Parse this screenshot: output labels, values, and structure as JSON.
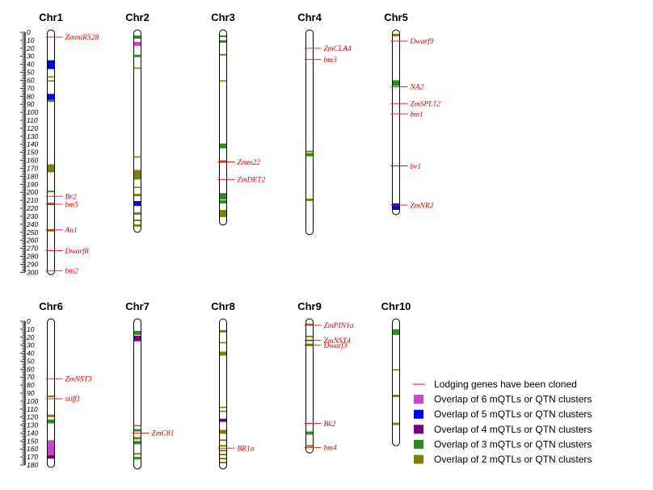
{
  "colors": {
    "gene_line": "#ff0000",
    "gene_text": "#e00000",
    "overlap6": "#cc44cc",
    "overlap5": "#0000ee",
    "overlap4": "#7a007a",
    "overlap3": "#2e8b1e",
    "overlap2": "#7f7f00"
  },
  "axis_rows": [
    {
      "ticks": [
        0,
        10,
        20,
        30,
        40,
        50,
        60,
        70,
        80,
        90,
        100,
        110,
        120,
        130,
        140,
        150,
        160,
        170,
        180,
        190,
        200,
        210,
        220,
        230,
        240,
        250,
        260,
        270,
        280,
        290,
        300
      ]
    },
    {
      "ticks": [
        0,
        10,
        20,
        30,
        40,
        50,
        60,
        70,
        80,
        90,
        100,
        110,
        120,
        130,
        140,
        150,
        160,
        170,
        180
      ]
    }
  ],
  "chromosomes": [
    {
      "name": "Chr1",
      "row": 0,
      "length": 300,
      "blocks": [
        {
          "s": 35,
          "e": 46,
          "c": "overlap5"
        },
        {
          "s": 55,
          "e": 56,
          "c": "overlap2"
        },
        {
          "s": 60,
          "e": 61,
          "c": "overlap2"
        },
        {
          "s": 77,
          "e": 86,
          "c": "overlap5"
        },
        {
          "s": 84,
          "e": 87,
          "c": "overlap3"
        },
        {
          "s": 165,
          "e": 175,
          "c": "overlap2"
        },
        {
          "s": 198,
          "e": 200,
          "c": "overlap3"
        },
        {
          "s": 213,
          "e": 216,
          "c": "overlap2"
        },
        {
          "s": 246,
          "e": 249,
          "c": "overlap2"
        }
      ],
      "genes": [
        {
          "pos": 6,
          "label": "ZmmiR528"
        },
        {
          "pos": 205,
          "label": "Br2"
        },
        {
          "pos": 215,
          "label": "bm5"
        },
        {
          "pos": 247,
          "label": "An1"
        },
        {
          "pos": 273,
          "label": "Dwarf8"
        },
        {
          "pos": 298,
          "label": "bm2"
        }
      ]
    },
    {
      "name": "Chr2",
      "row": 0,
      "length": 247,
      "blocks": [
        {
          "s": 4,
          "e": 8,
          "c": "overlap3"
        },
        {
          "s": 12,
          "e": 17,
          "c": "overlap6"
        },
        {
          "s": 28,
          "e": 31,
          "c": "overlap3"
        },
        {
          "s": 44,
          "e": 45,
          "c": "overlap2"
        },
        {
          "s": 155,
          "e": 156,
          "c": "overlap2"
        },
        {
          "s": 172,
          "e": 184,
          "c": "overlap2"
        },
        {
          "s": 193,
          "e": 194,
          "c": "overlap2"
        },
        {
          "s": 202,
          "e": 205,
          "c": "overlap2"
        },
        {
          "s": 211,
          "e": 217,
          "c": "overlap5"
        },
        {
          "s": 225,
          "e": 228,
          "c": "overlap2"
        },
        {
          "s": 234,
          "e": 236,
          "c": "overlap2"
        },
        {
          "s": 240,
          "e": 243,
          "c": "overlap2"
        }
      ],
      "genes": []
    },
    {
      "name": "Chr3",
      "row": 0,
      "length": 238,
      "blocks": [
        {
          "s": 4,
          "e": 6,
          "c": "overlap3"
        },
        {
          "s": 10,
          "e": 13,
          "c": "overlap3"
        },
        {
          "s": 27,
          "e": 29,
          "c": "overlap2"
        },
        {
          "s": 60,
          "e": 61,
          "c": "overlap2"
        },
        {
          "s": 139,
          "e": 145,
          "c": "overlap3"
        },
        {
          "s": 160,
          "e": 163,
          "c": "overlap2"
        },
        {
          "s": 201,
          "e": 209,
          "c": "overlap3"
        },
        {
          "s": 210,
          "e": 214,
          "c": "overlap3"
        },
        {
          "s": 222,
          "e": 231,
          "c": "overlap2"
        }
      ],
      "genes": [
        {
          "pos": 162,
          "label": "Zmm22"
        },
        {
          "pos": 184,
          "label": "ZmDET2"
        }
      ]
    },
    {
      "name": "Chr4",
      "row": 0,
      "length": 250,
      "blocks": [
        {
          "s": 148,
          "e": 150,
          "c": "overlap2"
        },
        {
          "s": 151,
          "e": 155,
          "c": "overlap3"
        },
        {
          "s": 208,
          "e": 211,
          "c": "overlap2"
        }
      ],
      "genes": [
        {
          "pos": 20,
          "label": "ZmCLA4"
        },
        {
          "pos": 34,
          "label": "bm3"
        }
      ]
    },
    {
      "name": "Chr5",
      "row": 0,
      "length": 225,
      "blocks": [
        {
          "s": 2,
          "e": 5,
          "c": "overlap2"
        },
        {
          "s": 60,
          "e": 67,
          "c": "overlap3"
        },
        {
          "s": 214,
          "e": 222,
          "c": "overlap5"
        }
      ],
      "genes": [
        {
          "pos": 11,
          "label": "Dwarf9"
        },
        {
          "pos": 68,
          "label": "NA2"
        },
        {
          "pos": 89,
          "label": "ZmSPL12"
        },
        {
          "pos": 102,
          "label": "bm1"
        },
        {
          "pos": 167,
          "label": "bv1"
        },
        {
          "pos": 216,
          "label": "ZmNR2"
        }
      ]
    },
    {
      "name": "Chr6",
      "row": 1,
      "length": 180,
      "blocks": [
        {
          "s": 93,
          "e": 95,
          "c": "overlap2"
        },
        {
          "s": 117,
          "e": 120,
          "c": "overlap2"
        },
        {
          "s": 123,
          "e": 128,
          "c": "overlap3"
        },
        {
          "s": 149,
          "e": 170,
          "c": "overlap6"
        },
        {
          "s": 168,
          "e": 172,
          "c": "overlap4"
        }
      ],
      "genes": [
        {
          "pos": 72,
          "label": "ZmNST3"
        },
        {
          "pos": 97,
          "label": "stiff1"
        }
      ]
    },
    {
      "name": "Chr7",
      "row": 1,
      "length": 182,
      "blocks": [
        {
          "s": 12,
          "e": 17,
          "c": "overlap3"
        },
        {
          "s": 18,
          "e": 25,
          "c": "overlap4"
        },
        {
          "s": 130,
          "e": 131,
          "c": "overlap2"
        },
        {
          "s": 135,
          "e": 138,
          "c": "overlap3"
        },
        {
          "s": 145,
          "e": 148,
          "c": "overlap2"
        },
        {
          "s": 150,
          "e": 154,
          "c": "overlap3"
        },
        {
          "s": 165,
          "e": 167,
          "c": "overlap2"
        },
        {
          "s": 170,
          "e": 173,
          "c": "overlap3"
        }
      ],
      "genes": [
        {
          "pos": 140,
          "label": "ZmC81"
        }
      ]
    },
    {
      "name": "Chr8",
      "row": 1,
      "length": 182,
      "blocks": [
        {
          "s": 11,
          "e": 14,
          "c": "overlap2"
        },
        {
          "s": 26,
          "e": 27,
          "c": "overlap2"
        },
        {
          "s": 38,
          "e": 43,
          "c": "overlap2"
        },
        {
          "s": 107,
          "e": 108,
          "c": "overlap2"
        },
        {
          "s": 112,
          "e": 113,
          "c": "overlap2"
        },
        {
          "s": 122,
          "e": 126,
          "c": "overlap4"
        },
        {
          "s": 136,
          "e": 141,
          "c": "overlap2"
        },
        {
          "s": 148,
          "e": 150,
          "c": "overlap2"
        },
        {
          "s": 155,
          "e": 157,
          "c": "overlap2"
        },
        {
          "s": 161,
          "e": 163,
          "c": "overlap2"
        },
        {
          "s": 166,
          "e": 168,
          "c": "overlap2"
        },
        {
          "s": 171,
          "e": 173,
          "c": "overlap2"
        },
        {
          "s": 176,
          "e": 178,
          "c": "overlap2"
        }
      ],
      "genes": [
        {
          "pos": 159,
          "label": "BR1a"
        }
      ]
    },
    {
      "name": "Chr9",
      "row": 1,
      "length": 162,
      "blocks": [
        {
          "s": 3,
          "e": 5,
          "c": "overlap2"
        },
        {
          "s": 18,
          "e": 20,
          "c": "overlap2"
        },
        {
          "s": 23,
          "e": 25,
          "c": "overlap2"
        },
        {
          "s": 28,
          "e": 31,
          "c": "overlap2"
        },
        {
          "s": 138,
          "e": 142,
          "c": "overlap3"
        },
        {
          "s": 155,
          "e": 157,
          "c": "overlap2"
        }
      ],
      "genes": [
        {
          "pos": 5,
          "label": "ZmPIN1a"
        },
        {
          "pos": 24,
          "label": "ZmNST4"
        },
        {
          "pos": 30,
          "label": "Dwarf3"
        },
        {
          "pos": 128,
          "label": "Bk2"
        },
        {
          "pos": 158,
          "label": "bm4"
        }
      ]
    },
    {
      "name": "Chr10",
      "row": 1,
      "length": 153,
      "blocks": [
        {
          "s": 10,
          "e": 17,
          "c": "overlap3"
        },
        {
          "s": 60,
          "e": 61,
          "c": "overlap2"
        },
        {
          "s": 92,
          "e": 95,
          "c": "overlap2"
        },
        {
          "s": 127,
          "e": 130,
          "c": "overlap2"
        }
      ],
      "genes": []
    }
  ],
  "legend": [
    {
      "type": "line",
      "color": "gene_line",
      "label": "Lodging genes have been cloned"
    },
    {
      "type": "box",
      "color": "overlap6",
      "label": "Overlap of 6 mQTLs or QTN clusters"
    },
    {
      "type": "box",
      "color": "overlap5",
      "label": "Overlap of 5 mQTLs or QTN clusters"
    },
    {
      "type": "box",
      "color": "overlap4",
      "label": "Overlap of 4 mQTLs or QTN clusters"
    },
    {
      "type": "box",
      "color": "overlap3",
      "label": "Overlap of 3 mQTLs or QTN clusters"
    },
    {
      "type": "box",
      "color": "overlap2",
      "label": "Overlap of 2 mQTLs or QTN clusters"
    }
  ]
}
